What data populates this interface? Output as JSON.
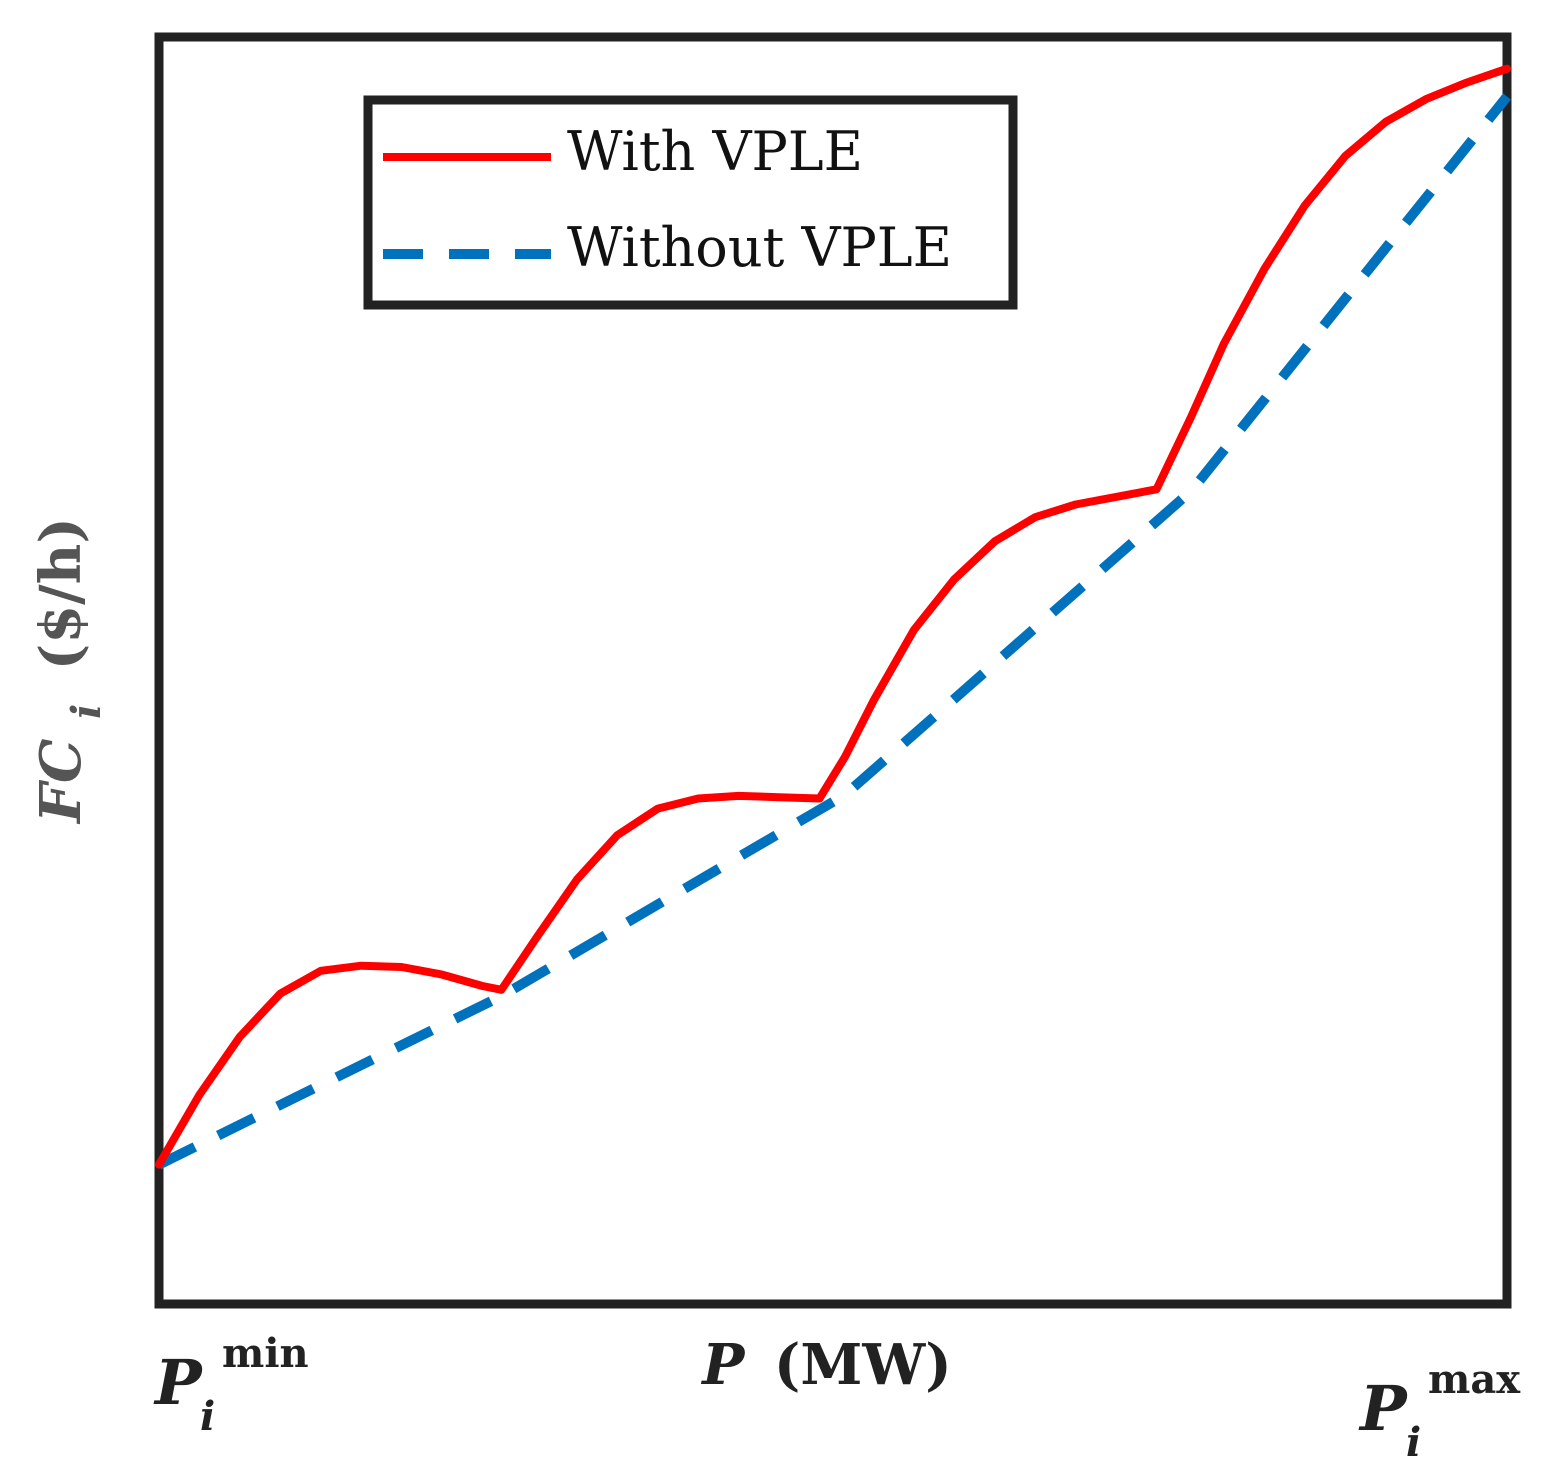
{
  "chart_data": {
    "type": "line",
    "title": "",
    "xlabel": {
      "symbol": "P",
      "unit": "(MW)"
    },
    "ylabel": {
      "symbol": "FC",
      "subscript": "i",
      "unit": "($/h)"
    },
    "x_ticks": [
      {
        "x": 0,
        "base": "P",
        "subscript": "i",
        "superscript": "min"
      },
      {
        "x": 1,
        "base": "P",
        "subscript": "i",
        "superscript": "max"
      }
    ],
    "xlim": [
      0,
      1
    ],
    "ylim": [
      0,
      1
    ],
    "grid": false,
    "legend": {
      "placement": "top-center"
    },
    "series": [
      {
        "name": "With VPLE",
        "color": "#ff0000",
        "style": "solid",
        "x": [
          0.0,
          0.03,
          0.06,
          0.09,
          0.12,
          0.15,
          0.18,
          0.21,
          0.24,
          0.254,
          0.28,
          0.31,
          0.34,
          0.37,
          0.4,
          0.43,
          0.46,
          0.49,
          0.509,
          0.53,
          0.56,
          0.59,
          0.62,
          0.65,
          0.68,
          0.71,
          0.74,
          0.766,
          0.79,
          0.82,
          0.85,
          0.88,
          0.91,
          0.94,
          0.97,
          1.0
        ],
        "y": [
          0.11,
          0.165,
          0.211,
          0.245,
          0.263,
          0.267,
          0.266,
          0.26,
          0.251,
          0.248,
          0.289,
          0.335,
          0.37,
          0.391,
          0.399,
          0.401,
          0.4,
          0.399,
          0.432,
          0.476,
          0.532,
          0.572,
          0.602,
          0.621,
          0.631,
          0.637,
          0.643,
          0.701,
          0.758,
          0.817,
          0.867,
          0.906,
          0.933,
          0.951,
          0.964,
          0.975
        ]
      },
      {
        "name": "Without VPLE",
        "color": "#0072bd",
        "style": "dashed",
        "x": [
          0.0,
          0.254,
          0.509,
          0.766,
          1.0
        ],
        "y": [
          0.11,
          0.243,
          0.402,
          0.642,
          0.953
        ]
      }
    ]
  }
}
